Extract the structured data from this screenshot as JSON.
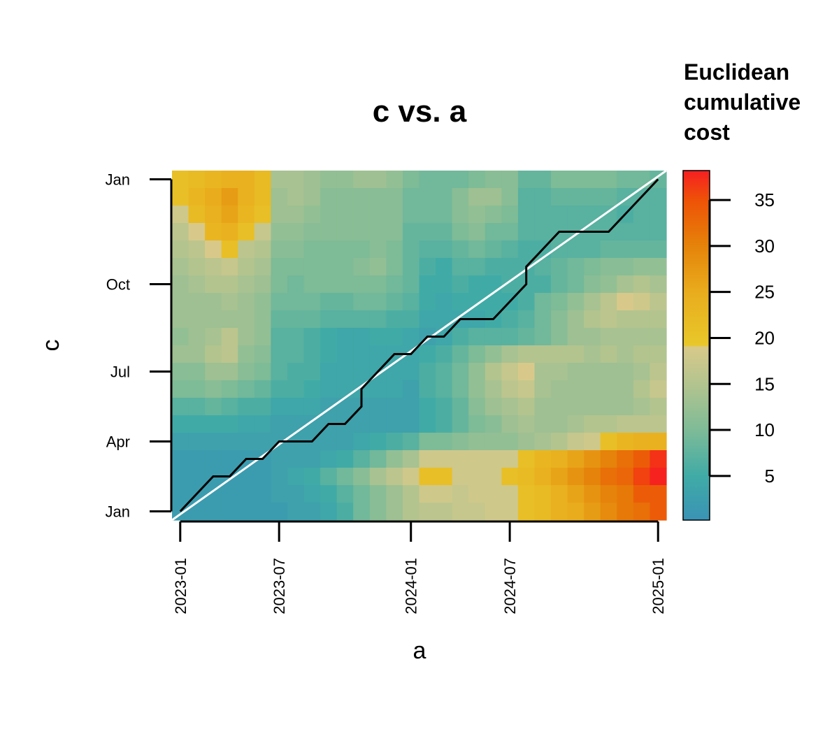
{
  "chart_data": {
    "type": "heatmap",
    "title": "c vs. a",
    "xlabel": "a",
    "ylabel": "c",
    "legend": {
      "title_lines": [
        "Euclidean",
        "cumulative",
        "cost"
      ],
      "ticks": [
        5,
        10,
        15,
        20,
        25,
        30,
        35
      ],
      "range": [
        0.2,
        38.2
      ],
      "placement": "right"
    },
    "x_ticks": [
      {
        "label": "2023-01",
        "index": 0.5
      },
      {
        "label": "2023-07",
        "index": 6.5
      },
      {
        "label": "2024-01",
        "index": 14.5
      },
      {
        "label": "2024-07",
        "index": 20.5
      },
      {
        "label": "2025-01",
        "index": 29.5
      }
    ],
    "y_ticks": [
      {
        "label": "Jan",
        "index": 0.5
      },
      {
        "label": "Apr",
        "index": 4.5
      },
      {
        "label": "Jul",
        "index": 8.5
      },
      {
        "label": "Oct",
        "index": 13.5
      },
      {
        "label": "Jan",
        "index": 19.5
      }
    ],
    "n_cols": 30,
    "n_rows": 20,
    "values_rows_top_to_bottom": [
      [
        21,
        22,
        23,
        24,
        24,
        22,
        14,
        14,
        13,
        12,
        12,
        13,
        13,
        12,
        10,
        9,
        9,
        9,
        10,
        11,
        11,
        8,
        8,
        10,
        10,
        10,
        10,
        9,
        9,
        8
      ],
      [
        21,
        23,
        25,
        27,
        24,
        22,
        13,
        14,
        13,
        11,
        11,
        11,
        11,
        11,
        9,
        9,
        9,
        11,
        13,
        13,
        11,
        7,
        7,
        8,
        8,
        8,
        8,
        7,
        7,
        7
      ],
      [
        18,
        22,
        24,
        26,
        23,
        21,
        13,
        13,
        12,
        11,
        11,
        11,
        11,
        11,
        9,
        9,
        9,
        11,
        12,
        11,
        10,
        7,
        7,
        7,
        7,
        7,
        7,
        6,
        7,
        7
      ],
      [
        16,
        19,
        23,
        24,
        21,
        17,
        12,
        12,
        11,
        11,
        11,
        11,
        11,
        11,
        8,
        8,
        8,
        10,
        11,
        9,
        9,
        7,
        7,
        7,
        7,
        7,
        7,
        7,
        7,
        7
      ],
      [
        15,
        16,
        19,
        21,
        16,
        15,
        11,
        11,
        10,
        10,
        10,
        10,
        11,
        10,
        8,
        7,
        7,
        8,
        9,
        8,
        7,
        6,
        6,
        7,
        7,
        7,
        8,
        8,
        8,
        8
      ],
      [
        14,
        15,
        16,
        17,
        15,
        14,
        10,
        10,
        10,
        10,
        10,
        11,
        12,
        10,
        8,
        6,
        5,
        7,
        7,
        6,
        6,
        6,
        7,
        8,
        9,
        10,
        11,
        11,
        12,
        12
      ],
      [
        13,
        14,
        15,
        15,
        14,
        13,
        10,
        9,
        10,
        10,
        10,
        10,
        10,
        9,
        8,
        5,
        5,
        6,
        5,
        5,
        6,
        6,
        6,
        8,
        9,
        11,
        12,
        14,
        15,
        14
      ],
      [
        13,
        13,
        13,
        14,
        13,
        12,
        9,
        9,
        9,
        8,
        8,
        9,
        9,
        8,
        7,
        5,
        4,
        5,
        5,
        5,
        5,
        6,
        9,
        10,
        12,
        14,
        16,
        19,
        18,
        16
      ],
      [
        13,
        13,
        13,
        13,
        13,
        12,
        8,
        8,
        8,
        7,
        7,
        7,
        7,
        6,
        6,
        4,
        4,
        4,
        4,
        5,
        6,
        7,
        9,
        11,
        13,
        15,
        16,
        15,
        15,
        15
      ],
      [
        12,
        13,
        14,
        16,
        13,
        12,
        7,
        7,
        6,
        5,
        4,
        4,
        5,
        5,
        4,
        3,
        4,
        6,
        7,
        7,
        7,
        8,
        9,
        11,
        13,
        13,
        14,
        14,
        14,
        14
      ],
      [
        13,
        13,
        15,
        16,
        12,
        11,
        7,
        7,
        6,
        5,
        4,
        4,
        4,
        4,
        4,
        5,
        6,
        8,
        10,
        12,
        14,
        15,
        15,
        15,
        15,
        14,
        15,
        14,
        15,
        15
      ],
      [
        11,
        11,
        13,
        13,
        11,
        10,
        7,
        6,
        6,
        4,
        4,
        4,
        4,
        4,
        4,
        6,
        7,
        9,
        12,
        15,
        17,
        19,
        14,
        14,
        13,
        13,
        13,
        13,
        14,
        16
      ],
      [
        10,
        10,
        11,
        10,
        9,
        8,
        6,
        6,
        5,
        4,
        4,
        4,
        4,
        4,
        3,
        6,
        7,
        9,
        12,
        14,
        16,
        17,
        14,
        13,
        13,
        13,
        13,
        13,
        15,
        17
      ],
      [
        7,
        7,
        8,
        7,
        6,
        6,
        4,
        4,
        4,
        3,
        3,
        3,
        3,
        3,
        3,
        5,
        6,
        8,
        11,
        13,
        14,
        15,
        13,
        13,
        13,
        13,
        13,
        13,
        14,
        15
      ],
      [
        5,
        5,
        5,
        5,
        4,
        4,
        3,
        3,
        3,
        3,
        3,
        3,
        3,
        3,
        3,
        5,
        6,
        8,
        10,
        11,
        13,
        14,
        13,
        13,
        14,
        15,
        15,
        16,
        16,
        16
      ],
      [
        3,
        3,
        3,
        3,
        3,
        3,
        3,
        3,
        3,
        3,
        3,
        4,
        5,
        6,
        7,
        10,
        10,
        11,
        12,
        12,
        12,
        13,
        14,
        15,
        17,
        18,
        21,
        23,
        24,
        24
      ],
      [
        2,
        2,
        2,
        2,
        2,
        2,
        3,
        3,
        3,
        4,
        5,
        7,
        9,
        12,
        14,
        18,
        18,
        18,
        18,
        18,
        18,
        21,
        23,
        24,
        26,
        28,
        30,
        32,
        34,
        37
      ],
      [
        2,
        2,
        2,
        2,
        2,
        2,
        3,
        4,
        5,
        7,
        9,
        11,
        14,
        16,
        18,
        21,
        21,
        18,
        18,
        18,
        21,
        22,
        24,
        26,
        28,
        30,
        32,
        33,
        36,
        38
      ],
      [
        2,
        2,
        2,
        2,
        2,
        2,
        3,
        3,
        4,
        5,
        7,
        9,
        11,
        13,
        15,
        18,
        18,
        17,
        18,
        18,
        18,
        21,
        22,
        24,
        26,
        28,
        30,
        31,
        34,
        34
      ],
      [
        2,
        2,
        2,
        2,
        2,
        2,
        2,
        3,
        3,
        4,
        6,
        9,
        11,
        13,
        15,
        16,
        16,
        17,
        17,
        18,
        18,
        21,
        22,
        24,
        25,
        27,
        29,
        31,
        32,
        34
      ]
    ],
    "warping_path": [
      [
        0,
        0
      ],
      [
        2,
        2
      ],
      [
        3,
        2
      ],
      [
        4,
        3
      ],
      [
        5,
        3
      ],
      [
        6,
        4
      ],
      [
        8,
        4
      ],
      [
        9,
        5
      ],
      [
        10,
        5
      ],
      [
        11,
        6
      ],
      [
        11,
        7
      ],
      [
        13,
        9
      ],
      [
        14,
        9
      ],
      [
        15,
        10
      ],
      [
        16,
        10
      ],
      [
        17,
        11
      ],
      [
        19,
        11
      ],
      [
        21,
        13
      ],
      [
        21,
        14
      ],
      [
        23,
        16
      ],
      [
        26,
        16
      ],
      [
        29,
        19
      ]
    ],
    "diagonal": {
      "from": [
        0,
        0
      ],
      "to": [
        30,
        20
      ]
    },
    "colors": {
      "path": "#000000",
      "diagonal": "#ffffff",
      "scale": [
        [
          0.2,
          "#3a93b5"
        ],
        [
          5,
          "#40aba6"
        ],
        [
          10,
          "#7ebb97"
        ],
        [
          15,
          "#b3c48f"
        ],
        [
          19,
          "#d8c98a"
        ],
        [
          19.2,
          "#e8c82a"
        ],
        [
          25,
          "#e9ac1d"
        ],
        [
          30,
          "#e5830a"
        ],
        [
          35,
          "#ee5207"
        ],
        [
          38.2,
          "#f61f22"
        ]
      ]
    }
  }
}
